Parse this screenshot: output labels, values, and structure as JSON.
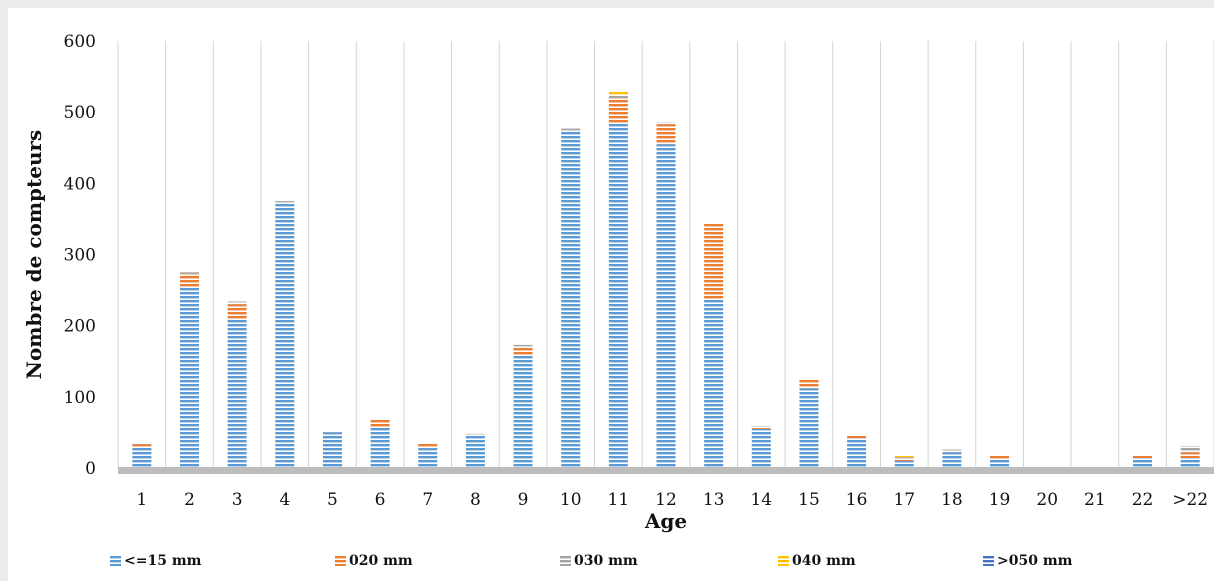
{
  "chart_data": {
    "type": "bar",
    "stacked": true,
    "title": "",
    "xlabel": "Age",
    "ylabel": "Nombre de compteurs",
    "ylim": [
      0,
      600
    ],
    "yticks": [
      0,
      100,
      200,
      300,
      400,
      500,
      600
    ],
    "grid": "vertical",
    "legend_position": "bottom",
    "categories": [
      "1",
      "2",
      "3",
      "4",
      "5",
      "6",
      "7",
      "8",
      "9",
      "10",
      "11",
      "12",
      "13",
      "14",
      "15",
      "16",
      "17",
      "18",
      "19",
      "20",
      "21",
      "22",
      ">22"
    ],
    "series": [
      {
        "name": "<=15 mm",
        "color": "#5b9bd5",
        "values": [
          30,
          255,
          210,
          372,
          50,
          58,
          28,
          47,
          158,
          473,
          485,
          455,
          238,
          55,
          112,
          42,
          10,
          22,
          12,
          2,
          2,
          14,
          14
        ]
      },
      {
        "name": "020 mm",
        "color": "#ed7d31",
        "values": [
          3,
          18,
          20,
          0,
          0,
          10,
          6,
          0,
          12,
          0,
          35,
          28,
          105,
          3,
          12,
          3,
          2,
          0,
          5,
          0,
          0,
          4,
          8
        ]
      },
      {
        "name": "030 mm",
        "color": "#a5a5a5",
        "values": [
          2,
          2,
          4,
          3,
          1,
          1,
          1,
          1,
          3,
          4,
          5,
          3,
          2,
          1,
          1,
          2,
          3,
          4,
          1,
          0,
          0,
          1,
          9
        ]
      },
      {
        "name": "040 mm",
        "color": "#ffc000",
        "values": [
          0,
          0,
          0,
          0,
          0,
          0,
          0,
          0,
          0,
          0,
          5,
          0,
          0,
          0,
          0,
          0,
          2,
          0,
          0,
          0,
          0,
          0,
          0
        ]
      },
      {
        "name": ">050 mm",
        "color": "#4472c4",
        "values": [
          0,
          0,
          0,
          0,
          0,
          0,
          0,
          0,
          0,
          0,
          0,
          0,
          0,
          0,
          0,
          0,
          0,
          0,
          0,
          0,
          0,
          0,
          0
        ]
      }
    ]
  }
}
